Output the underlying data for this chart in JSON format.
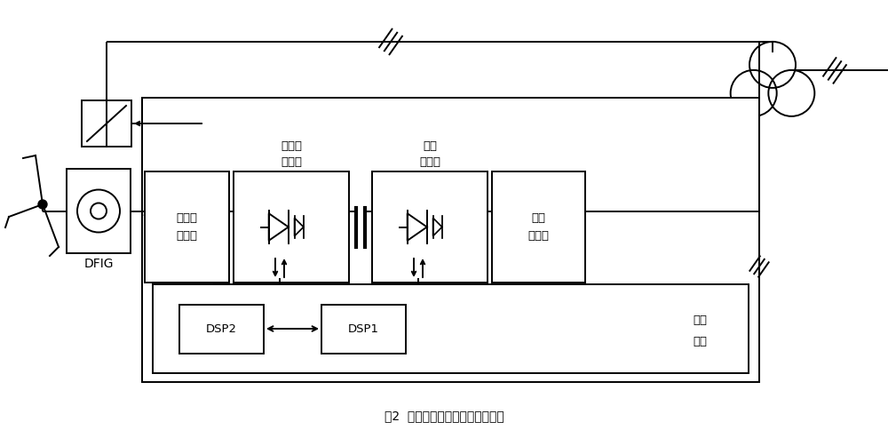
{
  "title": "图2  双馈风电系统实验平台结构图",
  "bg_color": "#ffffff",
  "lw": 1.4,
  "fs_main": 10,
  "fs_label": 9.5,
  "label_dfig": "DFIG",
  "label_rotor_filter_1": "转子侧",
  "label_rotor_filter_2": "滤波器",
  "label_rotor_conv_1": "转子侧",
  "label_rotor_conv_2": "变换器",
  "label_grid_conv_1": "网侧",
  "label_grid_conv_2": "变换器",
  "label_grid_filter_1": "网侧",
  "label_grid_filter_2": "滤波器",
  "label_dsp2": "DSP2",
  "label_dsp1": "DSP1",
  "label_ctrl_1": "控制",
  "label_ctrl_2": "系统"
}
